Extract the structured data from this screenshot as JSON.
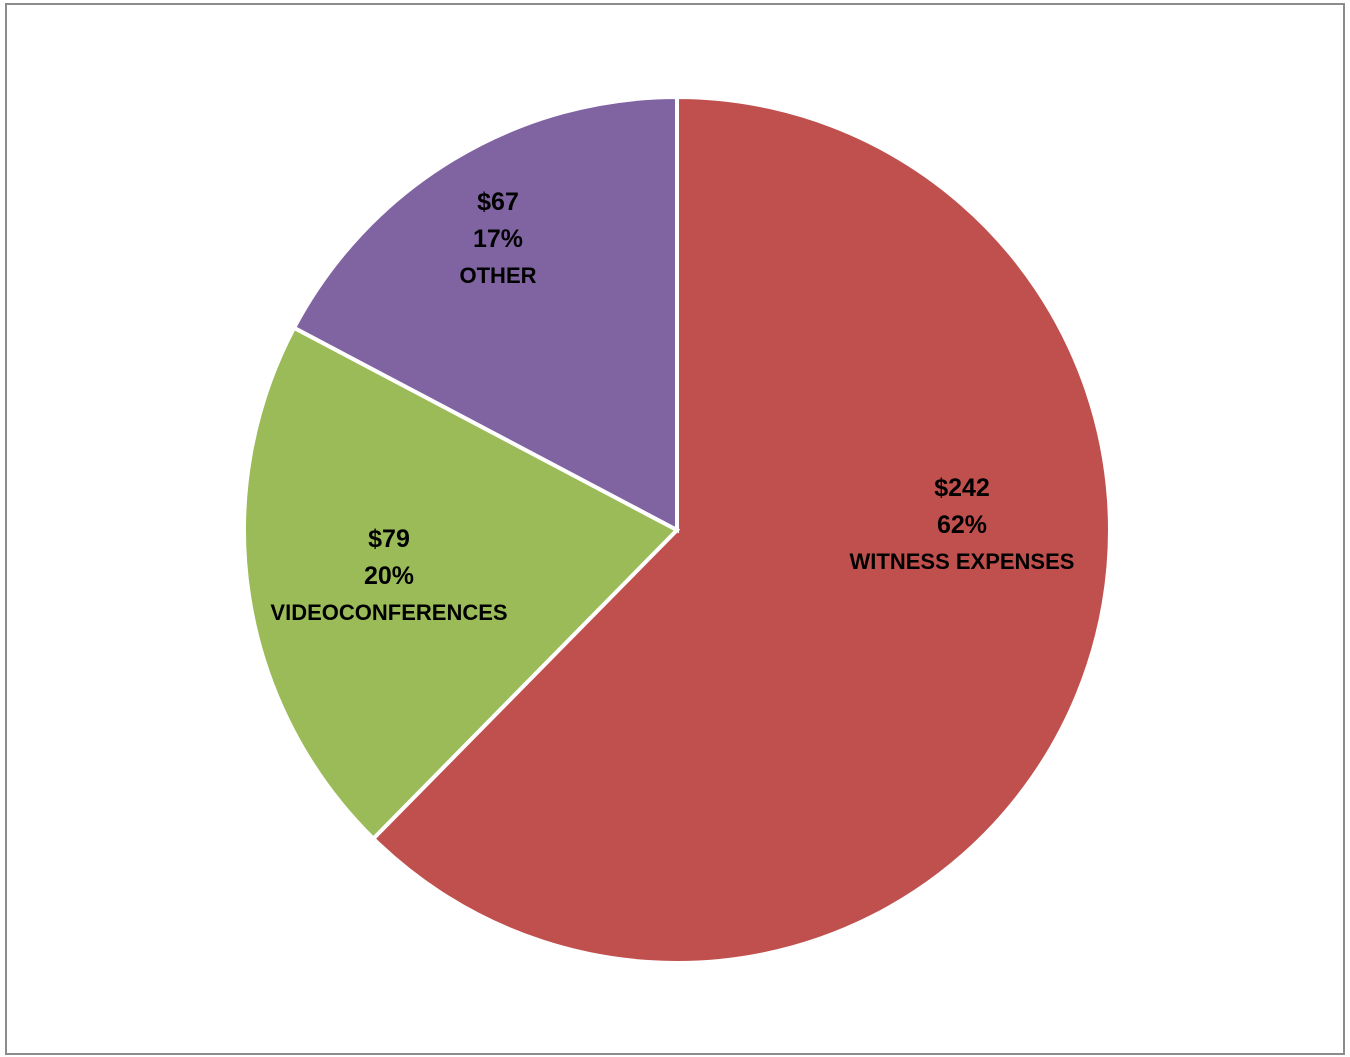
{
  "chart_data": {
    "type": "pie",
    "title": "",
    "start_angle_deg": 0,
    "direction": "clockwise",
    "slices": [
      {
        "label": "WITNESS EXPENSES",
        "value": 242,
        "value_label": "$242",
        "percent_label": "62%",
        "color": "#c0504d"
      },
      {
        "label": "VIDEOCONFERENCES",
        "value": 79,
        "value_label": "$79",
        "percent_label": "20%",
        "color": "#9bbb59"
      },
      {
        "label": "OTHER",
        "value": 67,
        "value_label": "$67",
        "percent_label": "17%",
        "color": "#8064a2"
      }
    ]
  }
}
